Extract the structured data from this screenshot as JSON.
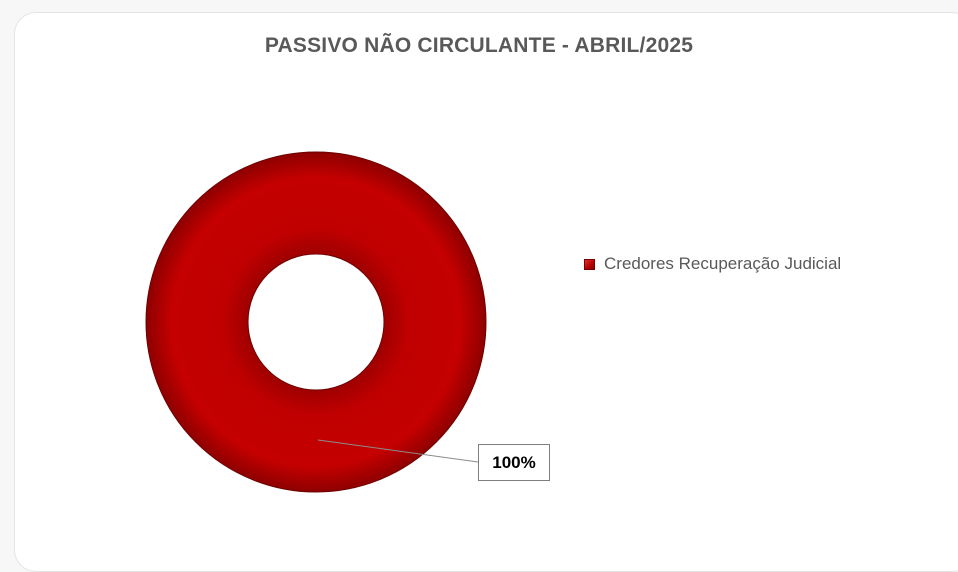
{
  "chart_data": {
    "type": "pie",
    "variant": "doughnut",
    "title": "PASSIVO NÃO CIRCULANTE - ABRIL/2025",
    "categories": [
      "Credores Recuperação Judicial"
    ],
    "values": [
      100
    ],
    "data_labels": [
      "100%"
    ],
    "colors": [
      "#c00000"
    ],
    "legend_position": "right"
  }
}
